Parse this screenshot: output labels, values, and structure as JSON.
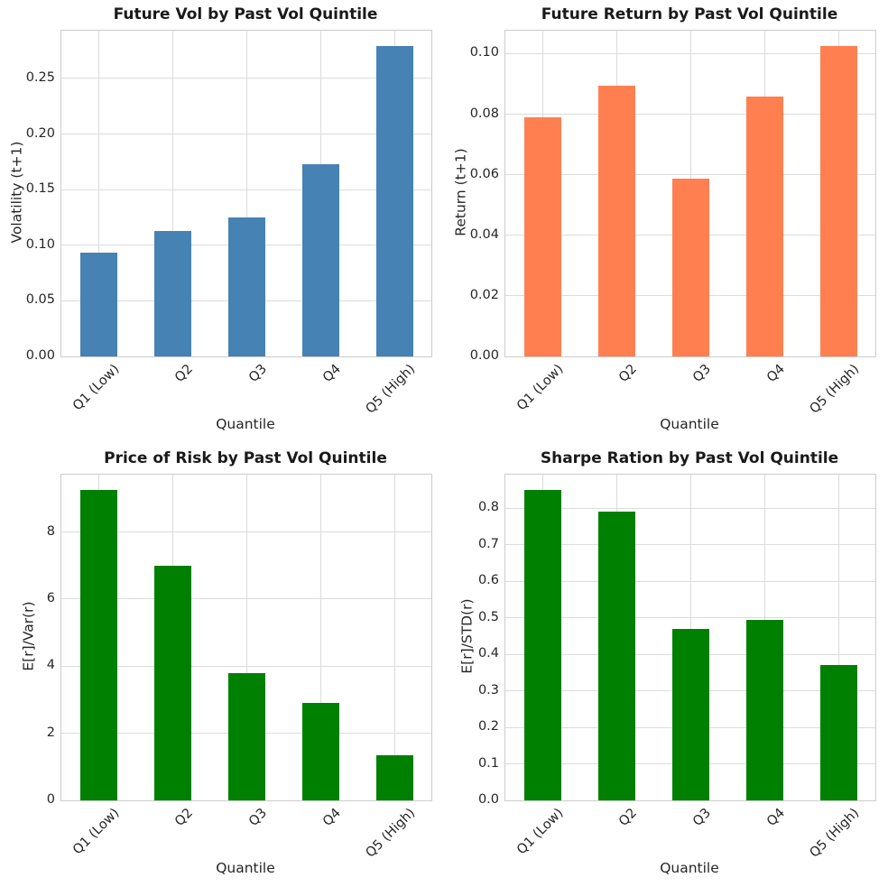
{
  "figure": {
    "background": "#ffffff",
    "layout": "2x2-grid",
    "colors": {
      "grid": "#dcdcdc",
      "axes_border": "#cccccc",
      "text": "#262626",
      "title": "#1a1a1a"
    }
  },
  "chart_data": [
    {
      "type": "bar",
      "title": "Future Vol by Past Vol Quintile",
      "xlabel": "Quantile",
      "ylabel": "Volatility (t+1)",
      "categories": [
        "Q1 (Low)",
        "Q2",
        "Q3",
        "Q4",
        "Q5 (High)"
      ],
      "values": [
        0.093,
        0.113,
        0.125,
        0.173,
        0.279
      ],
      "bar_color": "#4682B4",
      "ylim": [
        0,
        0.293
      ],
      "yticks": [
        0,
        0.05,
        0.1,
        0.15,
        0.2,
        0.25
      ],
      "ytick_labels": [
        "0.00",
        "0.05",
        "0.10",
        "0.15",
        "0.20",
        "0.25"
      ],
      "grid": true,
      "legend": "none",
      "x_tick_rotation": 45
    },
    {
      "type": "bar",
      "title": "Future Return by Past Vol Quintile",
      "xlabel": "Quantile",
      "ylabel": "Return (t+1)",
      "categories": [
        "Q1 (Low)",
        "Q2",
        "Q3",
        "Q4",
        "Q5 (High)"
      ],
      "values": [
        0.079,
        0.0893,
        0.0587,
        0.0858,
        0.1025
      ],
      "bar_color": "#FF7F50",
      "ylim": [
        0,
        0.1076
      ],
      "yticks": [
        0,
        0.02,
        0.04,
        0.06,
        0.08,
        0.1
      ],
      "ytick_labels": [
        "0.00",
        "0.02",
        "0.04",
        "0.06",
        "0.08",
        "0.10"
      ],
      "grid": true,
      "legend": "none",
      "x_tick_rotation": 45
    },
    {
      "type": "bar",
      "title": "Price of Risk by Past Vol Quintile",
      "xlabel": "Quantile",
      "ylabel": "E[r]/Var(r)",
      "categories": [
        "Q1 (Low)",
        "Q2",
        "Q3",
        "Q4",
        "Q5 (High)"
      ],
      "values": [
        9.25,
        7.0,
        3.8,
        2.9,
        1.35
      ],
      "bar_color": "#008000",
      "ylim": [
        0,
        9.71
      ],
      "yticks": [
        0,
        2,
        4,
        6,
        8
      ],
      "ytick_labels": [
        "0",
        "2",
        "4",
        "6",
        "8"
      ],
      "grid": true,
      "legend": "none",
      "x_tick_rotation": 45
    },
    {
      "type": "bar",
      "title": "Sharpe Ration by Past Vol Quintile",
      "xlabel": "Quantile",
      "ylabel": "E[r]/STD(r)",
      "categories": [
        "Q1 (Low)",
        "Q2",
        "Q3",
        "Q4",
        "Q5 (High)"
      ],
      "values": [
        0.85,
        0.79,
        0.47,
        0.495,
        0.37
      ],
      "bar_color": "#008000",
      "ylim": [
        0,
        0.8925
      ],
      "yticks": [
        0,
        0.1,
        0.2,
        0.3,
        0.4,
        0.5,
        0.6,
        0.7,
        0.8
      ],
      "ytick_labels": [
        "0.0",
        "0.1",
        "0.2",
        "0.3",
        "0.4",
        "0.5",
        "0.6",
        "0.7",
        "0.8"
      ],
      "grid": true,
      "legend": "none",
      "x_tick_rotation": 45
    }
  ]
}
